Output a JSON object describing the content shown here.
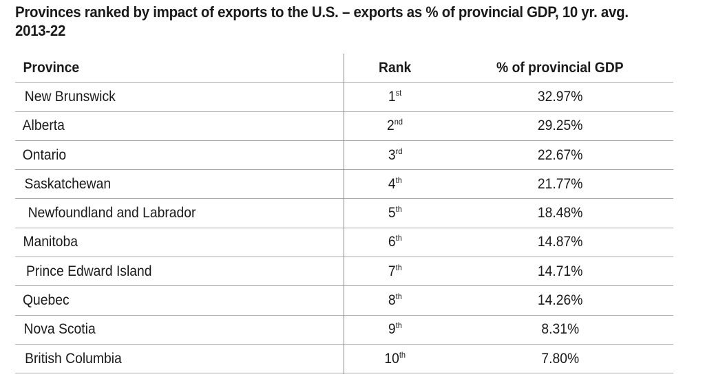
{
  "chart_data": {
    "type": "table",
    "title": "Provinces ranked by impact of exports to the U.S. – exports as % of provincial GDP, 10 yr. avg. 2013-22",
    "columns": [
      "Province",
      "Rank",
      "% of provincial GDP"
    ],
    "rows": [
      {
        "province": "New Brunswick",
        "rank": "1",
        "suffix": "st",
        "pct": "32.97%"
      },
      {
        "province": "Alberta",
        "rank": "2",
        "suffix": "nd",
        "pct": "29.25%"
      },
      {
        "province": "Ontario",
        "rank": "3",
        "suffix": "rd",
        "pct": "22.67%"
      },
      {
        "province": "Saskatchewan",
        "rank": "4",
        "suffix": "th",
        "pct": "21.77%"
      },
      {
        "province": "Newfoundland and Labrador",
        "rank": "5",
        "suffix": "th",
        "pct": "18.48%"
      },
      {
        "province": "Manitoba",
        "rank": "6",
        "suffix": "th",
        "pct": "14.87%"
      },
      {
        "province": "Prince Edward Island",
        "rank": "7",
        "suffix": "th",
        "pct": "14.71%"
      },
      {
        "province": "Quebec",
        "rank": "8",
        "suffix": "th",
        "pct": "14.26%"
      },
      {
        "province": "Nova Scotia",
        "rank": "9",
        "suffix": "th",
        "pct": "8.31%"
      },
      {
        "province": "British Columbia",
        "rank": "10",
        "suffix": "th",
        "pct": "7.80%"
      }
    ]
  }
}
